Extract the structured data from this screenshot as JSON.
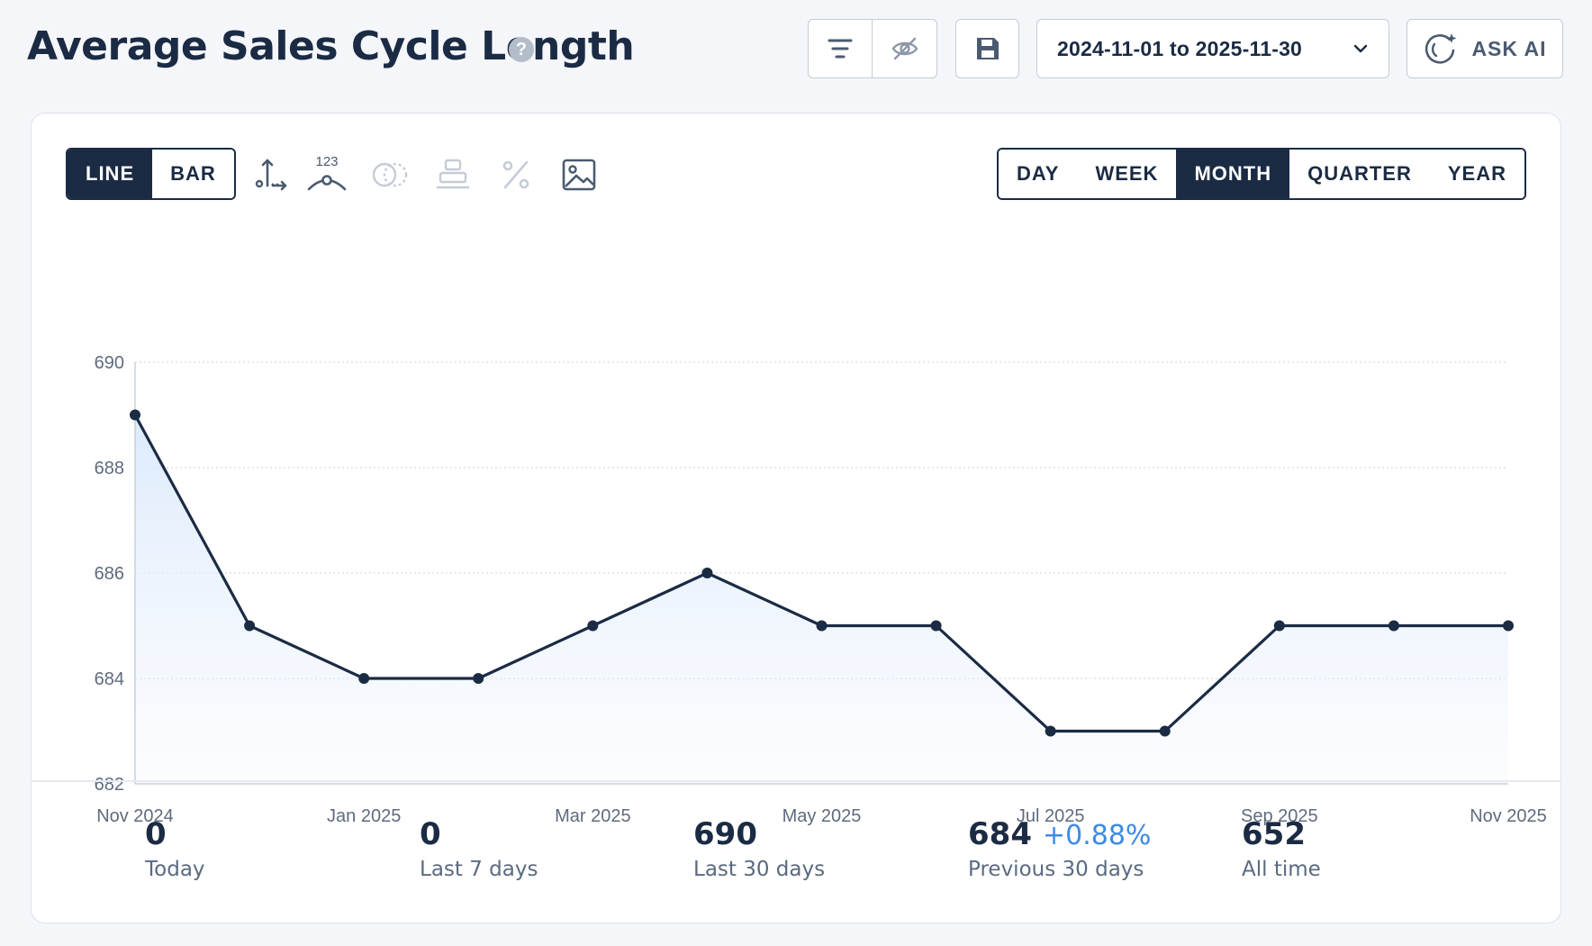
{
  "header": {
    "title": "Average Sales Cycle Length",
    "date_range": "2024-11-01 to 2025-11-30",
    "ask_ai_label": "ASK AI"
  },
  "chart_type_toggle": [
    "LINE",
    "BAR"
  ],
  "chart_type_selected": "LINE",
  "period_toggle": [
    "DAY",
    "WEEK",
    "MONTH",
    "QUARTER",
    "YEAR"
  ],
  "period_selected": "MONTH",
  "colors": {
    "primary": "#1b2b44",
    "accent": "#3d8ae6",
    "fill": "#dbe9fb"
  },
  "tools": [
    "axis-icon",
    "number-label-icon",
    "compare-icon",
    "stack-icon",
    "percent-icon",
    "image-icon"
  ],
  "tool_number_label": "123",
  "chart_data": {
    "type": "line",
    "x": [
      "Nov 2024",
      "Dec 2024",
      "Jan 2025",
      "Feb 2025",
      "Mar 2025",
      "Apr 2025",
      "May 2025",
      "Jun 2025",
      "Jul 2025",
      "Aug 2025",
      "Sep 2025",
      "Oct 2025",
      "Nov 2025"
    ],
    "x_tick_labels": [
      "Nov 2024",
      "Jan 2025",
      "Mar 2025",
      "May 2025",
      "Jul 2025",
      "Sep 2025",
      "Nov 2025"
    ],
    "values": [
      689,
      685,
      684,
      684,
      685,
      686,
      685,
      685,
      683,
      683,
      685,
      685,
      685
    ],
    "ylim": [
      682,
      690
    ],
    "y_ticks": [
      682,
      684,
      686,
      688,
      690
    ],
    "grid": true,
    "area_fill": true
  },
  "stats": [
    {
      "value": "0",
      "label": "Today"
    },
    {
      "value": "0",
      "label": "Last 7 days"
    },
    {
      "value": "690",
      "label": "Last 30 days"
    },
    {
      "value": "684",
      "change": "+0.88%",
      "label": "Previous 30 days"
    },
    {
      "value": "652",
      "label": "All time"
    }
  ]
}
